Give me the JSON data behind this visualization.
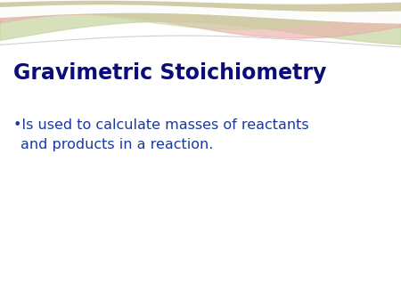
{
  "title": "Gravimetric Stoichiometry",
  "title_color": "#0d0d7a",
  "title_fontsize": 17,
  "bullet_line1": "•Is used to calculate masses of reactants",
  "bullet_line2": "and products in a reaction.",
  "bullet_color": "#1a3a9c",
  "bullet_fontsize": 11.5,
  "bg_color": "#ffffff",
  "wave": {
    "green_light": "#c5d5a0",
    "green_mid": "#a8be82",
    "pink_light": "#e8b0aa",
    "pink_mid": "#d4817a",
    "white_line": "#ffffff",
    "gray_line": "#d0d0d0"
  }
}
